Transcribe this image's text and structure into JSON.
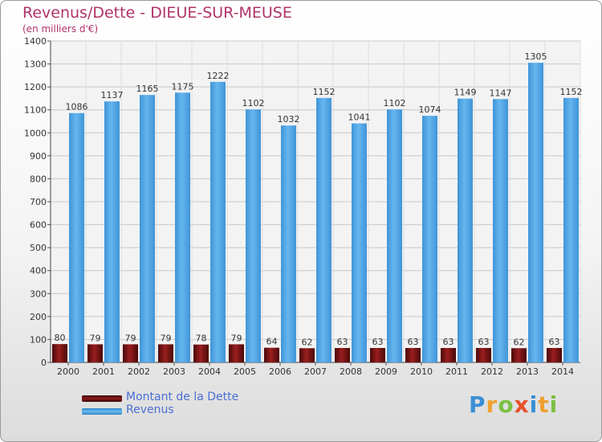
{
  "title": "Revenus/Dette - DIEUE-SUR-MEUSE",
  "subtitle": "(en milliers d'€)",
  "colors": {
    "revenus": "#5aaae6",
    "dette": "#8c1a1a",
    "title": "#b0336a",
    "legend_text": "#4a6fd4"
  },
  "legend": {
    "dette_label": "Montant de la Dette",
    "revenus_label": "Revenus"
  },
  "logo": {
    "text": "Proxiti"
  },
  "chart_data": {
    "type": "bar",
    "title": "Revenus/Dette - DIEUE-SUR-MEUSE",
    "subtitle": "(en milliers d'€)",
    "categories": [
      "2000",
      "2001",
      "2002",
      "2003",
      "2004",
      "2005",
      "2006",
      "2007",
      "2008",
      "2009",
      "2010",
      "2011",
      "2012",
      "2013",
      "2014"
    ],
    "series": [
      {
        "name": "Montant de la Dette",
        "key": "dette",
        "values": [
          80,
          79,
          79,
          79,
          78,
          79,
          64,
          62,
          63,
          63,
          63,
          63,
          63,
          62,
          63
        ]
      },
      {
        "name": "Revenus",
        "key": "revenus",
        "values": [
          1086,
          1137,
          1165,
          1175,
          1222,
          1102,
          1032,
          1152,
          1041,
          1102,
          1074,
          1149,
          1147,
          1305,
          1152
        ]
      }
    ],
    "ylim": [
      0,
      1400
    ],
    "yticks": [
      0,
      100,
      200,
      300,
      400,
      500,
      600,
      700,
      800,
      900,
      1000,
      1100,
      1200,
      1300,
      1400
    ],
    "grid": true,
    "legend_position": "bottom-left"
  }
}
